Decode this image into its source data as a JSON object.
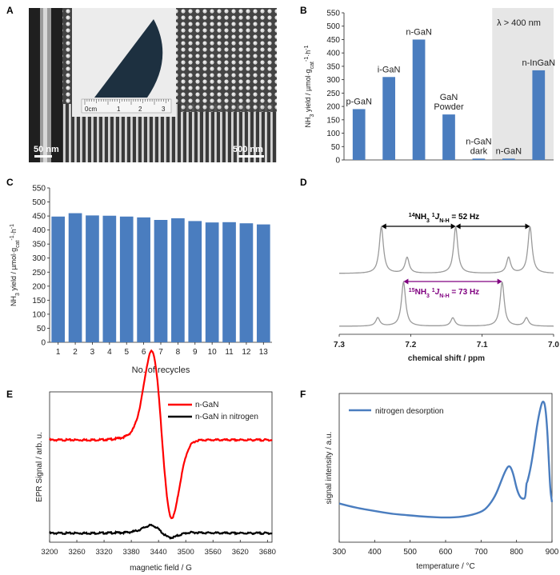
{
  "panel_labels": [
    "A",
    "B",
    "C",
    "D",
    "E",
    "F"
  ],
  "panelA": {
    "scale_left": "50 nm",
    "scale_right": "500 nm",
    "ruler_ticks": [
      "0cm",
      "1",
      "2",
      "3"
    ]
  },
  "chart_data": [
    {
      "id": "B",
      "type": "bar",
      "categories": [
        "p-GaN",
        "i-GaN",
        "n-GaN",
        "GaN Powder",
        "n-GaN dark",
        "n-GaN",
        "n-InGaN"
      ],
      "category_lines": [
        [
          "p-GaN"
        ],
        [
          "i-GaN"
        ],
        [
          "n-GaN"
        ],
        [
          "GaN",
          "Powder"
        ],
        [
          "n-GaN",
          "dark"
        ],
        [
          "n-GaN"
        ],
        [
          "n-InGaN"
        ]
      ],
      "values": [
        190,
        310,
        450,
        170,
        5,
        5,
        335
      ],
      "ylabel": "NH3 yield / µmol·gcat-1·h-1",
      "ylim": [
        0,
        550
      ],
      "yticks": [
        0,
        50,
        100,
        150,
        200,
        250,
        300,
        350,
        400,
        450,
        500,
        550
      ],
      "annotation": "λ > 400 nm",
      "shaded_categories": [
        5,
        6
      ],
      "bar_color": "#4a7dbf",
      "shade_color": "#e6e6e6"
    },
    {
      "id": "C",
      "type": "bar",
      "categories": [
        "1",
        "2",
        "3",
        "4",
        "5",
        "6",
        "7",
        "8",
        "9",
        "10",
        "11",
        "12",
        "13"
      ],
      "values": [
        448,
        460,
        452,
        451,
        448,
        445,
        436,
        442,
        432,
        427,
        428,
        424,
        420
      ],
      "xlabel": "No. of recycles",
      "ylabel": "NH3 yield / µmol·gcat-1·h-1",
      "ylim": [
        0,
        550
      ],
      "yticks": [
        0,
        50,
        100,
        150,
        200,
        250,
        300,
        350,
        400,
        450,
        500,
        550
      ],
      "bar_color": "#4a7dbf"
    },
    {
      "id": "D",
      "type": "line",
      "xlabel": "chemical shift / ppm",
      "xlim": [
        7.3,
        7.0
      ],
      "xticks": [
        7.3,
        7.2,
        7.1,
        7.0
      ],
      "annotations": {
        "n14": {
          "iso": "14",
          "main": "NH",
          "sub3": "3",
          "sup1": "1",
          "J": "J",
          "sub": "N-H",
          "rest": " = 52 Hz"
        },
        "n15": {
          "iso": "15",
          "main": "NH",
          "sub3": "3",
          "sup1": "1",
          "J": "J",
          "sub": "N-H",
          "rest": " = 73 Hz"
        }
      },
      "series": [
        {
          "peaks_ppm": [
            7.241,
            7.205,
            7.137,
            7.063,
            7.033
          ],
          "heights": [
            1.0,
            0.34,
            1.0,
            0.34,
            1.0
          ]
        },
        {
          "peaks_ppm": [
            7.246,
            7.21,
            7.141,
            7.072,
            7.038
          ],
          "heights": [
            0.19,
            1.0,
            0.19,
            1.0,
            0.19
          ]
        }
      ],
      "line_color": "#9a9a9a",
      "arrow_colors": [
        "#000000",
        "#800080"
      ]
    },
    {
      "id": "E",
      "type": "line",
      "xlabel": "magnetic field / G",
      "ylabel": "EPR Signal / arb. u.",
      "xlim": [
        3200,
        3690
      ],
      "xticks": [
        3200,
        3260,
        3320,
        3380,
        3440,
        3500,
        3560,
        3620,
        3680
      ],
      "series": [
        {
          "name": "n-GaN",
          "color": "#ff0000",
          "baseline": 0.68,
          "center": 3447,
          "amplitude": 0.54
        },
        {
          "name": "n-GaN in nitrogen",
          "color": "#000000",
          "baseline": 0.06,
          "center": 3445,
          "amplitude": 0.04
        }
      ]
    },
    {
      "id": "F",
      "type": "line",
      "xlabel": "temperature / °C",
      "ylabel": "signal intensity / a.u.",
      "xlim": [
        300,
        900
      ],
      "xticks": [
        300,
        400,
        500,
        600,
        700,
        800,
        900
      ],
      "series": [
        {
          "name": "nitrogen desorption",
          "color": "#4a7dbf",
          "x": [
            300,
            350,
            400,
            450,
            500,
            550,
            600,
            650,
            700,
            720,
            740,
            755,
            770,
            780,
            790,
            800,
            810,
            820,
            825,
            828,
            830,
            840,
            850,
            860,
            870,
            875,
            880,
            885,
            890,
            895,
            900
          ],
          "y": [
            0.26,
            0.23,
            0.21,
            0.19,
            0.18,
            0.17,
            0.165,
            0.17,
            0.2,
            0.24,
            0.31,
            0.4,
            0.49,
            0.52,
            0.47,
            0.36,
            0.3,
            0.29,
            0.3,
            0.4,
            0.4,
            0.5,
            0.65,
            0.82,
            0.93,
            0.95,
            0.93,
            0.82,
            0.6,
            0.35,
            0.27
          ]
        }
      ]
    }
  ]
}
